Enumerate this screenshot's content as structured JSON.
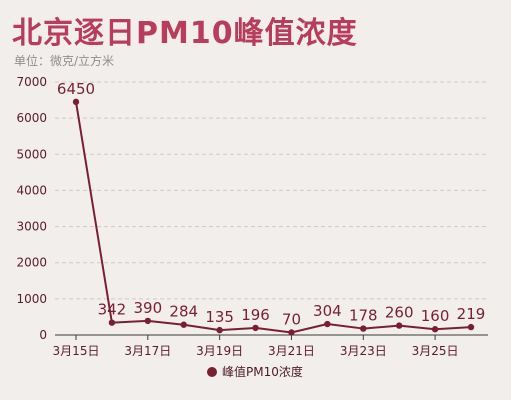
{
  "header": {
    "title": "北京逐日PM10峰值浓度",
    "unit": "单位：微克/立方米"
  },
  "colors": {
    "title": "#b83c5c",
    "series": "#7a1f33",
    "grid": "#cfc9c6",
    "background": "#f2eeec"
  },
  "chart_data": {
    "type": "line",
    "title": "北京逐日PM10峰值浓度",
    "subtitle": "单位：微克/立方米",
    "x": [
      "3月15日",
      "3月16日",
      "3月17日",
      "3月18日",
      "3月19日",
      "3月20日",
      "3月21日",
      "3月22日",
      "3月23日",
      "3月24日",
      "3月25日",
      "3月26日"
    ],
    "x_tick_labels": [
      "3月15日",
      "3月17日",
      "3月19日",
      "3月21日",
      "3月23日",
      "3月25日"
    ],
    "series": [
      {
        "name": "峰值PM10浓度",
        "values": [
          6450,
          342,
          390,
          284,
          135,
          196,
          70,
          304,
          178,
          260,
          160,
          219
        ]
      }
    ],
    "ylim": [
      0,
      7000
    ],
    "yticks": [
      0,
      1000,
      2000,
      3000,
      4000,
      5000,
      6000,
      7000
    ],
    "grid": "horizontal dashed",
    "legend_position": "bottom"
  }
}
